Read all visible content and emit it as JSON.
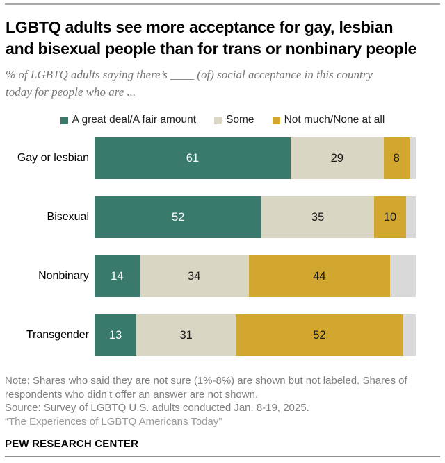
{
  "palette": {
    "teal": "#3A7A6C",
    "beige": "#DAD6C4",
    "gold": "#D2A72F",
    "gray_remainder": "#D9D9D9",
    "rule_gray": "#A9A9A9"
  },
  "header": {
    "title_line1": "LGBTQ adults see more acceptance for gay, lesbian",
    "title_line2": "and bisexual people than for trans or nonbinary people",
    "subtitle_line1": "% of LGBTQ adults saying there’s ____ (of) social acceptance in this country",
    "subtitle_line2": "today for people who are ..."
  },
  "chart_data": {
    "type": "bar",
    "orientation": "horizontal",
    "stacked": true,
    "unit": "percent",
    "xlim": [
      0,
      100
    ],
    "grid": false,
    "legend_position": "top",
    "categories": [
      "Gay or lesbian",
      "Bisexual",
      "Nonbinary",
      "Transgender"
    ],
    "series": [
      {
        "name": "A great deal/A fair amount",
        "color": "#3A7A6C",
        "label_color": "#FFFFFF",
        "in_legend": true,
        "labeled": true,
        "values": [
          61,
          52,
          14,
          13
        ]
      },
      {
        "name": "Some",
        "color": "#DAD6C4",
        "label_color": "#1A1A1A",
        "in_legend": true,
        "labeled": true,
        "values": [
          29,
          35,
          34,
          31
        ]
      },
      {
        "name": "Not much/None at all",
        "color": "#D2A72F",
        "label_color": "#1A1A1A",
        "in_legend": true,
        "labeled": true,
        "values": [
          8,
          10,
          44,
          52
        ]
      },
      {
        "name": "Not sure (shown but not labeled)",
        "color": "#D9D9D9",
        "label_color": "#1A1A1A",
        "in_legend": false,
        "labeled": false,
        "values": [
          2,
          3,
          8,
          4
        ]
      }
    ]
  },
  "footer": {
    "note": "Note: Shares who said they are not sure (1%-8%) are shown but not labeled. Shares of respondents who didn’t offer an answer are not shown.",
    "source": "Source: Survey of LGBTQ U.S. adults conducted Jan. 8-19, 2025.",
    "study": "“The Experiences of LGBTQ Americans Today”",
    "brand": "PEW RESEARCH CENTER"
  }
}
